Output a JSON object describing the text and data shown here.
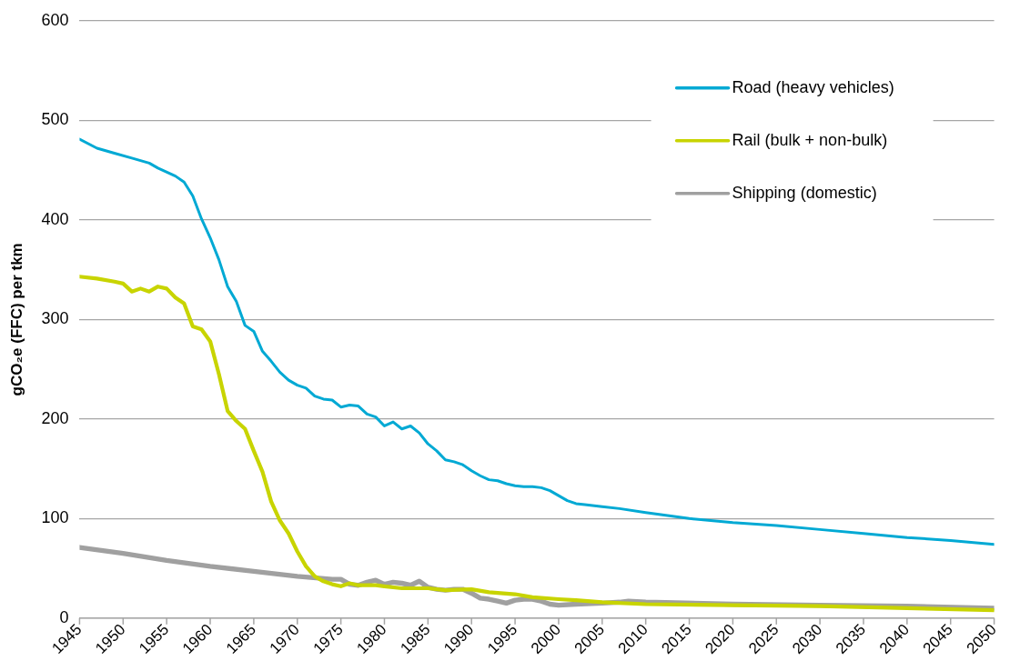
{
  "chart_data": {
    "type": "line",
    "ylabel": "gCO₂e (FFC) per tkm",
    "xlim": [
      1945,
      2050
    ],
    "xticks": [
      1945,
      1950,
      1955,
      1960,
      1965,
      1970,
      1975,
      1980,
      1985,
      1990,
      1995,
      2000,
      2005,
      2010,
      2015,
      2020,
      2025,
      2030,
      2035,
      2040,
      2045,
      2050
    ],
    "ylim": [
      0,
      600
    ],
    "yticks": [
      0,
      100,
      200,
      300,
      400,
      500,
      600
    ],
    "grid": "y",
    "legend": "top right",
    "marker": "none",
    "line_style": "solid",
    "series": [
      {
        "name": "Road (heavy vehicles)",
        "color": "#00a9d4",
        "x": [
          1945,
          1947,
          1949,
          1951,
          1953,
          1954,
          1956,
          1957,
          1958,
          1959,
          1960,
          1961,
          1962,
          1963,
          1964,
          1965,
          1966,
          1967,
          1968,
          1969,
          1970,
          1971,
          1972,
          1973,
          1974,
          1975,
          1976,
          1977,
          1978,
          1979,
          1980,
          1981,
          1982,
          1983,
          1984,
          1985,
          1986,
          1987,
          1988,
          1989,
          1990,
          1991,
          1992,
          1993,
          1994,
          1995,
          1996,
          1997,
          1998,
          1999,
          2000,
          2001,
          2002,
          2003,
          2005,
          2007,
          2010,
          2015,
          2020,
          2025,
          2030,
          2035,
          2040,
          2045,
          2050
        ],
        "values": [
          481,
          472,
          467,
          462,
          457,
          452,
          444,
          438,
          424,
          401,
          382,
          360,
          333,
          318,
          294,
          288,
          268,
          258,
          247,
          239,
          234,
          231,
          223,
          220,
          219,
          212,
          214,
          213,
          205,
          202,
          193,
          197,
          190,
          193,
          186,
          175,
          168,
          159,
          157,
          154,
          148,
          143,
          139,
          138,
          135,
          133,
          132,
          132,
          131,
          128,
          123,
          118,
          115,
          114,
          112,
          110,
          106,
          100,
          96,
          93,
          89,
          85,
          81,
          78,
          74
        ]
      },
      {
        "name": "Rail (bulk + non-bulk)",
        "color": "#c8d400",
        "x": [
          1945,
          1947,
          1949,
          1950,
          1951,
          1952,
          1953,
          1954,
          1955,
          1956,
          1957,
          1958,
          1959,
          1960,
          1961,
          1962,
          1963,
          1964,
          1965,
          1966,
          1967,
          1968,
          1969,
          1970,
          1971,
          1972,
          1973,
          1974,
          1975,
          1976,
          1977,
          1978,
          1979,
          1980,
          1982,
          1985,
          1987,
          1990,
          1992,
          1995,
          1997,
          2000,
          2002,
          2005,
          2010,
          2020,
          2030,
          2040,
          2050
        ],
        "values": [
          343,
          341,
          338,
          336,
          328,
          331,
          328,
          333,
          331,
          322,
          316,
          293,
          290,
          278,
          245,
          208,
          198,
          190,
          168,
          147,
          117,
          98,
          85,
          67,
          52,
          42,
          37,
          34,
          32,
          35,
          33,
          33,
          33,
          32,
          30,
          30,
          28,
          29,
          26,
          24,
          21,
          19,
          18,
          16,
          14,
          13,
          12,
          10,
          8
        ]
      },
      {
        "name": "Shipping (domestic)",
        "color": "#a0a0a0",
        "x": [
          1945,
          1950,
          1955,
          1960,
          1965,
          1970,
          1974,
          1975,
          1976,
          1977,
          1978,
          1979,
          1980,
          1981,
          1982,
          1983,
          1984,
          1985,
          1986,
          1987,
          1988,
          1989,
          1990,
          1991,
          1992,
          1993,
          1994,
          1995,
          1996,
          1997,
          1998,
          1999,
          2000,
          2002,
          2005,
          2007,
          2008,
          2010,
          2020,
          2030,
          2040,
          2050
        ],
        "values": [
          71,
          65,
          58,
          52,
          47,
          42,
          39,
          39,
          34,
          33,
          36,
          38,
          34,
          36,
          35,
          33,
          37,
          31,
          29,
          28,
          29,
          29,
          25,
          20,
          19,
          17,
          15,
          18,
          19,
          19,
          17,
          14,
          13,
          14,
          15,
          16,
          17,
          16,
          14,
          13,
          12,
          10
        ]
      }
    ]
  }
}
